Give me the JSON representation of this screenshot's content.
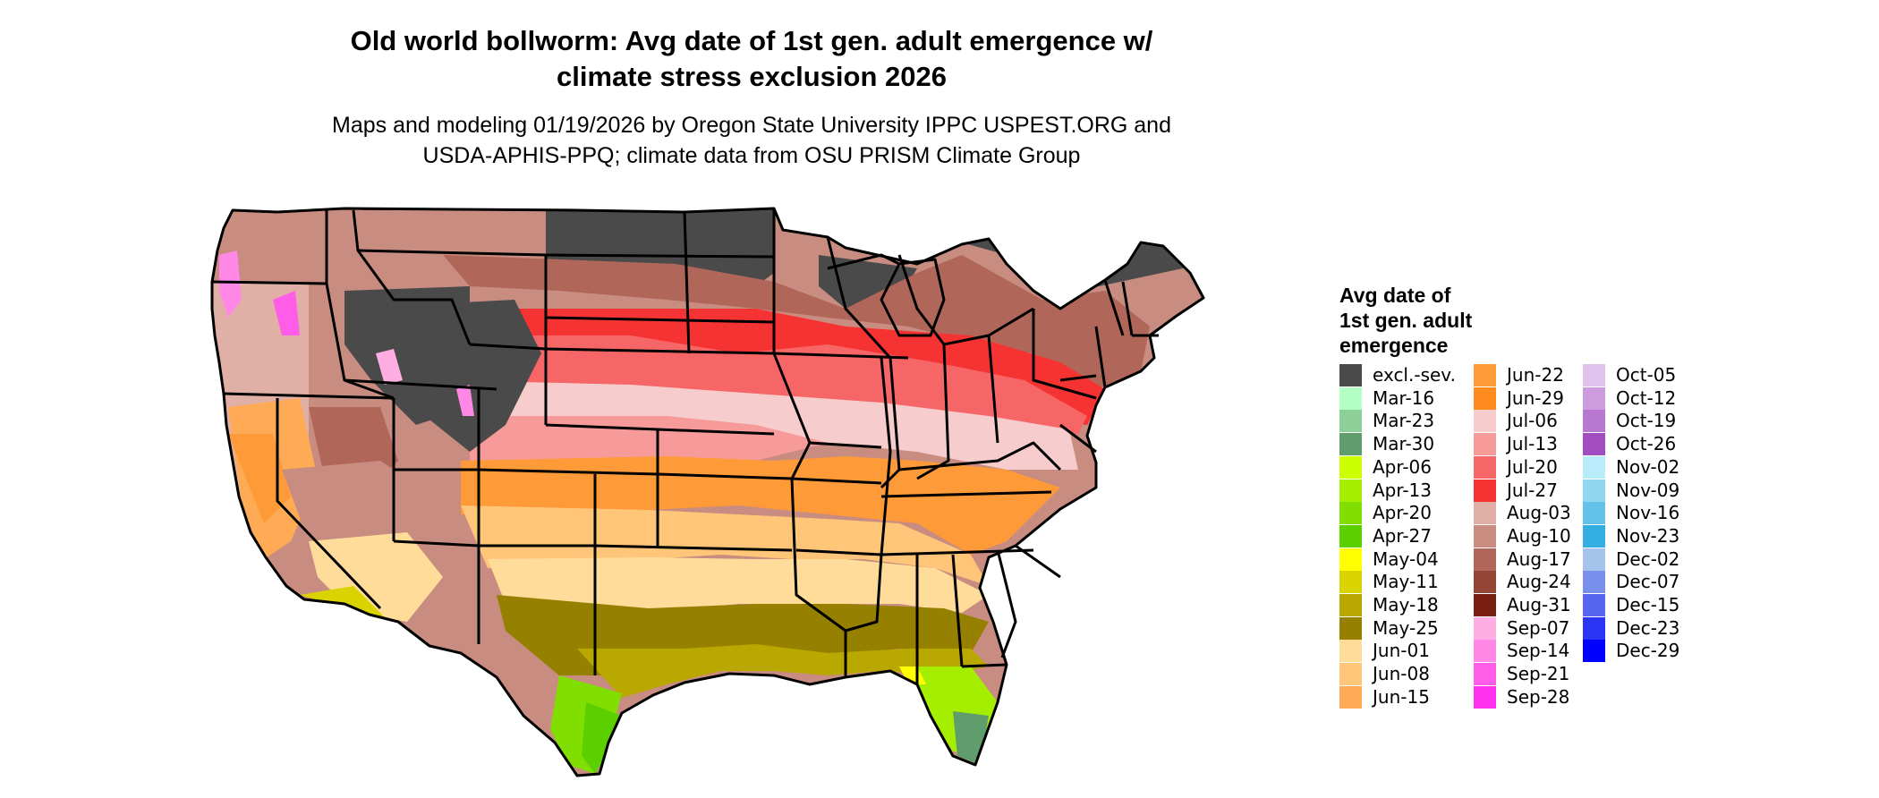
{
  "header": {
    "title_line1": "Old world bollworm: Avg date of 1st gen. adult emergence w/",
    "title_line2": "climate stress exclusion 2026",
    "subtitle_line1": "Maps and modeling 01/19/2026 by Oregon State University IPPC USPEST.ORG and",
    "subtitle_line2": "USDA-APHIS-PPQ; climate data from OSU PRISM Climate Group"
  },
  "legend": {
    "title_line1": "Avg date of",
    "title_line2": "1st gen. adult",
    "title_line3": "emergence",
    "columns": [
      [
        {
          "label": "excl.-sev.",
          "color": "#4a4a4a"
        },
        {
          "label": "Mar-16",
          "color": "#b3ffc4"
        },
        {
          "label": "Mar-23",
          "color": "#8ccf99"
        },
        {
          "label": "Mar-30",
          "color": "#5f9e6c"
        },
        {
          "label": "Apr-06",
          "color": "#ccff00"
        },
        {
          "label": "Apr-13",
          "color": "#a6ee00"
        },
        {
          "label": "Apr-20",
          "color": "#80df00"
        },
        {
          "label": "Apr-27",
          "color": "#5ccf00"
        },
        {
          "label": "May-04",
          "color": "#ffff00"
        },
        {
          "label": "May-11",
          "color": "#d9d400"
        },
        {
          "label": "May-18",
          "color": "#b8a800"
        },
        {
          "label": "May-25",
          "color": "#968000"
        },
        {
          "label": "Jun-01",
          "color": "#ffdc9a"
        },
        {
          "label": "Jun-08",
          "color": "#ffc67a"
        },
        {
          "label": "Jun-15",
          "color": "#ffab55"
        }
      ],
      [
        {
          "label": "Jun-22",
          "color": "#ff9a38"
        },
        {
          "label": "Jun-29",
          "color": "#ff8a1e"
        },
        {
          "label": "Jul-06",
          "color": "#f6cccc"
        },
        {
          "label": "Jul-13",
          "color": "#f79a9a"
        },
        {
          "label": "Jul-20",
          "color": "#f76666"
        },
        {
          "label": "Jul-27",
          "color": "#f53333"
        },
        {
          "label": "Aug-03",
          "color": "#e0b0a6"
        },
        {
          "label": "Aug-10",
          "color": "#c98c80"
        },
        {
          "label": "Aug-17",
          "color": "#b0675a"
        },
        {
          "label": "Aug-24",
          "color": "#944536"
        },
        {
          "label": "Aug-31",
          "color": "#7a2010"
        },
        {
          "label": "Sep-07",
          "color": "#ffaee4"
        },
        {
          "label": "Sep-14",
          "color": "#ff88e6"
        },
        {
          "label": "Sep-21",
          "color": "#ff5ce8"
        },
        {
          "label": "Sep-28",
          "color": "#ff30ee"
        }
      ],
      [
        {
          "label": "Oct-05",
          "color": "#e0c2ec"
        },
        {
          "label": "Oct-12",
          "color": "#cc9cde"
        },
        {
          "label": "Oct-19",
          "color": "#b878d0"
        },
        {
          "label": "Oct-26",
          "color": "#a24cc2"
        },
        {
          "label": "Nov-02",
          "color": "#b8ecfa"
        },
        {
          "label": "Nov-09",
          "color": "#90d8f2"
        },
        {
          "label": "Nov-16",
          "color": "#64c2ea"
        },
        {
          "label": "Nov-23",
          "color": "#34aee2"
        },
        {
          "label": "Dec-02",
          "color": "#a4c4ec"
        },
        {
          "label": "Dec-07",
          "color": "#7890ec"
        },
        {
          "label": "Dec-15",
          "color": "#5666f0"
        },
        {
          "label": "Dec-23",
          "color": "#2c34f6"
        },
        {
          "label": "Dec-29",
          "color": "#0000ff"
        }
      ]
    ]
  }
}
